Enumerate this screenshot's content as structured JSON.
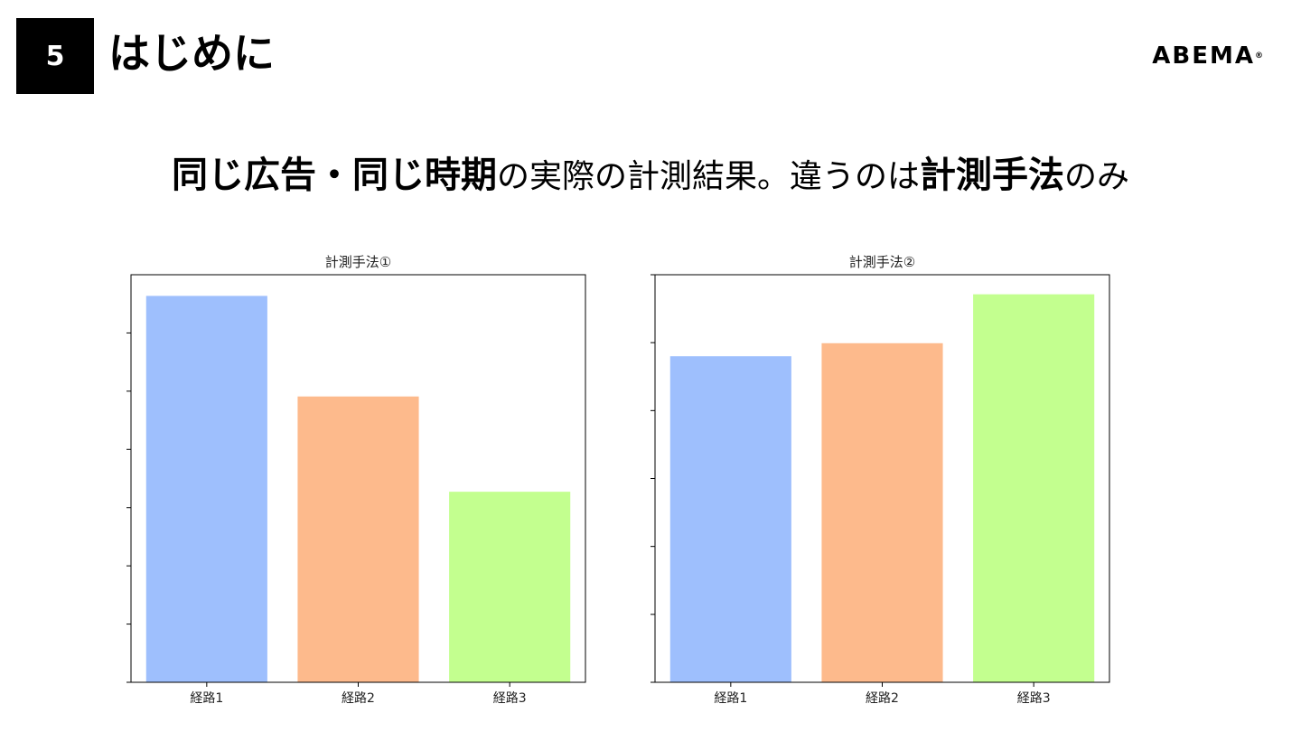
{
  "slide": {
    "number": "5",
    "title": "はじめに",
    "brand": "ABEMA",
    "brand_mark": "®",
    "headline_parts": [
      {
        "text": "同じ広告・同じ時期",
        "bold": true
      },
      {
        "text": "の実際の計測結果。違うのは",
        "bold": false
      },
      {
        "text": "計測手法",
        "bold": true
      },
      {
        "text": "のみ",
        "bold": false
      }
    ]
  },
  "chart_data": [
    {
      "type": "bar",
      "title": "計測手法①",
      "categories": [
        "経路1",
        "経路2",
        "経路3"
      ],
      "values": [
        7.3,
        5.4,
        3.6
      ],
      "colors": [
        "#9ebffd",
        "#fdba8c",
        "#c3ff8f"
      ],
      "ylim": [
        0,
        7.7
      ],
      "ytick_count": 7,
      "ytick_labels_shown": false
    },
    {
      "type": "bar",
      "title": "計測手法②",
      "categories": [
        "経路1",
        "経路2",
        "経路3"
      ],
      "values": [
        5.0,
        5.2,
        5.95
      ],
      "colors": [
        "#9ebffd",
        "#fdba8c",
        "#c3ff8f"
      ],
      "ylim": [
        0,
        6.25
      ],
      "ytick_count": 6,
      "ytick_labels_shown": false
    }
  ]
}
